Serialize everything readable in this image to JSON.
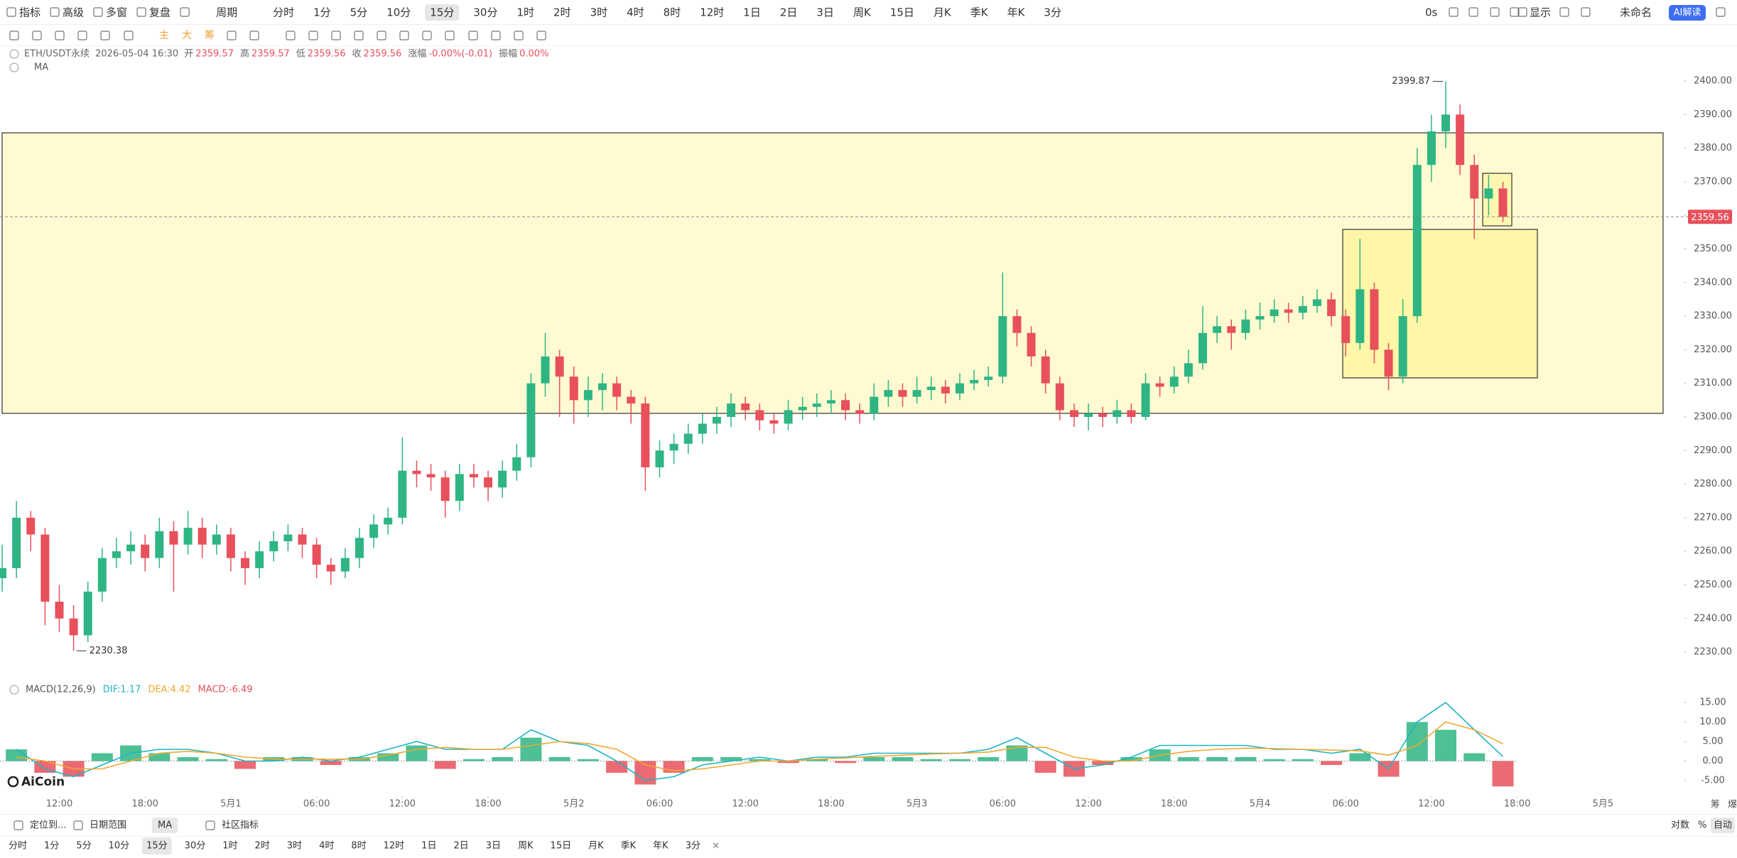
{
  "toolbar": {
    "left": [
      "指标",
      "高级",
      "多窗",
      "复盘"
    ],
    "period": "周期",
    "intervals": [
      "分时",
      "1分",
      "5分",
      "10分",
      "15分",
      "30分",
      "1时",
      "2时",
      "3时",
      "4时",
      "8时",
      "12时",
      "1日",
      "2日",
      "3日",
      "周K",
      "15日",
      "月K",
      "季K",
      "年K",
      "3分"
    ],
    "selected": 4,
    "timer": "0s",
    "display": "显示",
    "account": "未命名",
    "ai": "AI解读",
    "draw_tools": [
      "主",
      "大",
      "筹"
    ]
  },
  "info": {
    "symbol": "ETH/USDT永续",
    "time": "2026-05-04 16:30",
    "fields": [
      {
        "label": "开",
        "value": "2359.57"
      },
      {
        "label": "高",
        "value": "2359.57"
      },
      {
        "label": "低",
        "value": "2359.56"
      },
      {
        "label": "收",
        "value": "2359.56"
      },
      {
        "label": "涨幅",
        "value": "-0.00%(-0.01)"
      },
      {
        "label": "振幅",
        "value": "0.00%"
      }
    ],
    "ma": "MA"
  },
  "chart_data": {
    "type": "candlestick",
    "up_color": "#2eb583",
    "down_color": "#e8505b",
    "candles": [
      [
        2252,
        2262,
        2248,
        2255
      ],
      [
        2255,
        2275,
        2252,
        2270
      ],
      [
        2270,
        2272,
        2260,
        2265
      ],
      [
        2265,
        2267,
        2238,
        2245
      ],
      [
        2245,
        2250,
        2236,
        2240
      ],
      [
        2240,
        2244,
        2230.38,
        2235
      ],
      [
        2235,
        2251,
        2233,
        2248
      ],
      [
        2248,
        2261,
        2245,
        2258
      ],
      [
        2258,
        2264,
        2255,
        2260
      ],
      [
        2260,
        2266,
        2256,
        2262
      ],
      [
        2262,
        2265,
        2254,
        2258
      ],
      [
        2258,
        2270,
        2255,
        2266
      ],
      [
        2266,
        2269,
        2248,
        2262
      ],
      [
        2262,
        2272,
        2259,
        2267
      ],
      [
        2267,
        2270,
        2258,
        2262
      ],
      [
        2262,
        2268,
        2259,
        2265
      ],
      [
        2265,
        2267,
        2254,
        2258
      ],
      [
        2258,
        2260,
        2250,
        2255
      ],
      [
        2255,
        2263,
        2252,
        2260
      ],
      [
        2260,
        2266,
        2257,
        2263
      ],
      [
        2263,
        2268,
        2260,
        2265
      ],
      [
        2265,
        2267,
        2258,
        2262
      ],
      [
        2262,
        2264,
        2252,
        2256
      ],
      [
        2256,
        2258,
        2250,
        2254
      ],
      [
        2254,
        2261,
        2252,
        2258
      ],
      [
        2258,
        2267,
        2255,
        2264
      ],
      [
        2264,
        2271,
        2261,
        2268
      ],
      [
        2268,
        2273,
        2265,
        2270
      ],
      [
        2270,
        2294,
        2268,
        2284
      ],
      [
        2284,
        2287,
        2279,
        2283
      ],
      [
        2283,
        2286,
        2278,
        2282
      ],
      [
        2282,
        2284,
        2270,
        2275
      ],
      [
        2275,
        2286,
        2272,
        2283
      ],
      [
        2283,
        2286,
        2279,
        2282
      ],
      [
        2282,
        2284,
        2275,
        2279
      ],
      [
        2279,
        2287,
        2276,
        2284
      ],
      [
        2284,
        2292,
        2281,
        2288
      ],
      [
        2288,
        2313,
        2285,
        2310
      ],
      [
        2310,
        2325,
        2306,
        2318
      ],
      [
        2318,
        2320,
        2300,
        2312
      ],
      [
        2312,
        2315,
        2298,
        2305
      ],
      [
        2305,
        2312,
        2300,
        2308
      ],
      [
        2308,
        2313,
        2302,
        2310
      ],
      [
        2310,
        2312,
        2302,
        2306
      ],
      [
        2306,
        2308,
        2298,
        2304
      ],
      [
        2304,
        2306,
        2278,
        2285
      ],
      [
        2285,
        2293,
        2282,
        2290
      ],
      [
        2290,
        2295,
        2286,
        2292
      ],
      [
        2292,
        2298,
        2289,
        2295
      ],
      [
        2295,
        2301,
        2292,
        2298
      ],
      [
        2298,
        2303,
        2295,
        2300
      ],
      [
        2300,
        2307,
        2297,
        2304
      ],
      [
        2304,
        2306,
        2299,
        2302
      ],
      [
        2302,
        2304,
        2296,
        2299
      ],
      [
        2299,
        2301,
        2295,
        2298
      ],
      [
        2298,
        2305,
        2296,
        2302
      ],
      [
        2302,
        2306,
        2299,
        2303
      ],
      [
        2303,
        2307,
        2300,
        2304
      ],
      [
        2304,
        2308,
        2301,
        2305
      ],
      [
        2305,
        2307,
        2299,
        2302
      ],
      [
        2302,
        2304,
        2298,
        2301
      ],
      [
        2301,
        2310,
        2299,
        2306
      ],
      [
        2306,
        2311,
        2303,
        2308
      ],
      [
        2308,
        2310,
        2303,
        2306
      ],
      [
        2306,
        2312,
        2304,
        2308
      ],
      [
        2308,
        2312,
        2305,
        2309
      ],
      [
        2309,
        2311,
        2304,
        2307
      ],
      [
        2307,
        2313,
        2305,
        2310
      ],
      [
        2310,
        2314,
        2308,
        2311
      ],
      [
        2311,
        2315,
        2309,
        2312
      ],
      [
        2312,
        2343,
        2310,
        2330
      ],
      [
        2330,
        2332,
        2321,
        2325
      ],
      [
        2325,
        2327,
        2315,
        2318
      ],
      [
        2318,
        2320,
        2307,
        2310
      ],
      [
        2310,
        2312,
        2299,
        2302
      ],
      [
        2302,
        2304,
        2297,
        2300
      ],
      [
        2300,
        2304,
        2296,
        2301
      ],
      [
        2301,
        2303,
        2297,
        2300
      ],
      [
        2300,
        2305,
        2298,
        2302
      ],
      [
        2302,
        2304,
        2298,
        2300
      ],
      [
        2300,
        2313,
        2299,
        2310
      ],
      [
        2310,
        2312,
        2306,
        2309
      ],
      [
        2309,
        2315,
        2307,
        2312
      ],
      [
        2312,
        2320,
        2310,
        2316
      ],
      [
        2316,
        2333,
        2314,
        2325
      ],
      [
        2325,
        2330,
        2322,
        2327
      ],
      [
        2327,
        2329,
        2320,
        2325
      ],
      [
        2325,
        2332,
        2323,
        2329
      ],
      [
        2329,
        2334,
        2326,
        2330
      ],
      [
        2330,
        2335,
        2328,
        2332
      ],
      [
        2332,
        2334,
        2328,
        2331
      ],
      [
        2331,
        2336,
        2329,
        2333
      ],
      [
        2333,
        2338,
        2331,
        2335
      ],
      [
        2335,
        2337,
        2327,
        2330
      ],
      [
        2330,
        2332,
        2318,
        2322
      ],
      [
        2322,
        2353,
        2320,
        2338
      ],
      [
        2338,
        2340,
        2316,
        2320
      ],
      [
        2320,
        2322,
        2308,
        2312
      ],
      [
        2312,
        2335,
        2310,
        2330
      ],
      [
        2330,
        2380,
        2328,
        2375
      ],
      [
        2375,
        2390,
        2370,
        2385
      ],
      [
        2385,
        2399.87,
        2380,
        2390
      ],
      [
        2390,
        2393,
        2372,
        2375
      ],
      [
        2375,
        2378,
        2353,
        2365
      ],
      [
        2365,
        2372,
        2360,
        2368
      ],
      [
        2368,
        2370,
        2358,
        2359.56
      ]
    ],
    "high_label": "2399.87",
    "low_label": "2230.38",
    "last_price": {
      "value": 2359.56,
      "label": "2359.56"
    },
    "ylim": [
      2222.2,
      2401.9
    ],
    "yticks": [
      {
        "value": 2230,
        "label": "2230.00"
      },
      {
        "value": 2240,
        "label": "2240.00"
      },
      {
        "value": 2250,
        "label": "2250.00"
      },
      {
        "value": 2260,
        "label": "2260.00"
      },
      {
        "value": 2270,
        "label": "2270.00"
      },
      {
        "value": 2280,
        "label": "2280.00"
      },
      {
        "value": 2290,
        "label": "2290.00"
      },
      {
        "value": 2300,
        "label": "2300.00"
      },
      {
        "value": 2310,
        "label": "2310.00"
      },
      {
        "value": 2320,
        "label": "2320.00"
      },
      {
        "value": 2330,
        "label": "2330.00"
      },
      {
        "value": 2340,
        "label": "2340.00"
      },
      {
        "value": 2350,
        "label": "2350.00"
      },
      {
        "value": 2360,
        "label": "2360.00"
      },
      {
        "value": 2370,
        "label": "2370.00"
      },
      {
        "value": 2380,
        "label": "2380.00"
      },
      {
        "value": 2390,
        "label": "2390.00"
      },
      {
        "value": 2400,
        "label": "2400.00"
      }
    ],
    "xlim": [
      -0.15,
      117.65
    ],
    "xticks": [
      {
        "value": 4,
        "label": "12:00"
      },
      {
        "value": 10,
        "label": "18:00"
      },
      {
        "value": 16,
        "label": "5月1"
      },
      {
        "value": 22,
        "label": "06:00"
      },
      {
        "value": 28,
        "label": "12:00"
      },
      {
        "value": 34,
        "label": "18:00"
      },
      {
        "value": 40,
        "label": "5月2"
      },
      {
        "value": 46,
        "label": "06:00"
      },
      {
        "value": 52,
        "label": "12:00"
      },
      {
        "value": 58,
        "label": "18:00"
      },
      {
        "value": 64,
        "label": "5月3"
      },
      {
        "value": 70,
        "label": "06:00"
      },
      {
        "value": 76,
        "label": "12:00"
      },
      {
        "value": 82,
        "label": "18:00"
      },
      {
        "value": 88,
        "label": "5月4"
      },
      {
        "value": 94,
        "label": "06:00"
      },
      {
        "value": 100,
        "label": "12:00"
      },
      {
        "value": 106,
        "label": "18:00"
      },
      {
        "value": 112,
        "label": "5月5"
      }
    ],
    "grid": false
  },
  "macd": {
    "type": "macd",
    "title": "MACD(12,26,9)",
    "dif_label": "DIF:1.17",
    "dea_label": "DEA:4.42",
    "macd_label": "MACD:-6.49",
    "dif_color": "#1eb3c4",
    "dea_color": "#f0a82e",
    "hist": [
      3,
      -3,
      -4,
      2,
      4,
      2,
      1,
      0.5,
      -2,
      1,
      1,
      -1,
      1,
      2,
      4,
      -2,
      0.5,
      1,
      6,
      1,
      0.5,
      -3,
      -6,
      -3,
      1,
      1,
      0.5,
      -0.5,
      0.5,
      -0.5,
      1,
      1,
      0.5,
      0.5,
      1,
      4,
      -3,
      -4,
      -1,
      1,
      3,
      1,
      1,
      1,
      0.5,
      0.5,
      -1,
      2,
      -4,
      10,
      8,
      2,
      -6.49
    ],
    "dif": [
      3,
      -2,
      -4,
      -1,
      2,
      3,
      3,
      2,
      0,
      0,
      1,
      0,
      1,
      3,
      5,
      3,
      3,
      3,
      8,
      5,
      4,
      0,
      -5,
      -4,
      -1,
      0,
      1,
      0,
      1,
      1,
      2,
      2,
      2,
      2,
      3,
      6,
      2,
      -2,
      -1,
      1,
      4,
      4,
      4,
      4,
      3,
      3,
      2,
      3,
      -2,
      10,
      15,
      8,
      1.17
    ],
    "dea": [
      1,
      0,
      -2,
      -2,
      0,
      2,
      2.5,
      2,
      1,
      0.5,
      0.5,
      0.5,
      0.5,
      1.5,
      3,
      3.5,
      3,
      3,
      4,
      5,
      4.5,
      3,
      -1,
      -2.5,
      -2,
      -1,
      0,
      0,
      0.5,
      0.8,
      1.2,
      1.5,
      1.8,
      2,
      2.3,
      3.5,
      3.5,
      1,
      0,
      0,
      1.5,
      2.5,
      3,
      3.3,
      3.2,
      3,
      2.8,
      2.6,
      1.5,
      4,
      10,
      8,
      4.42
    ],
    "xlim": [
      -0.575,
      58.325
    ],
    "ylim": [
      -8.45,
      16.64
    ],
    "yticks": [
      {
        "value": 15,
        "label": "15.00"
      },
      {
        "value": 10,
        "label": "10.00"
      },
      {
        "value": 5,
        "label": "5.00"
      },
      {
        "value": 0,
        "label": "0.00"
      },
      {
        "value": -5,
        "label": "-5.00"
      }
    ]
  },
  "logo": "AiCoin",
  "corner": [
    "筹",
    "爆"
  ],
  "bottom": {
    "buttons": [
      "定位到...",
      "日期范围",
      "MA",
      "社区指标"
    ],
    "right": [
      "对数",
      "%",
      "自动"
    ],
    "intervals": [
      "分时",
      "1分",
      "5分",
      "10分",
      "15分",
      "30分",
      "1时",
      "2时",
      "3时",
      "4时",
      "8时",
      "12时",
      "1日",
      "2日",
      "3日",
      "周K",
      "15日",
      "月K",
      "季K",
      "年K",
      "3分"
    ],
    "selected": 4,
    "close": "×"
  }
}
